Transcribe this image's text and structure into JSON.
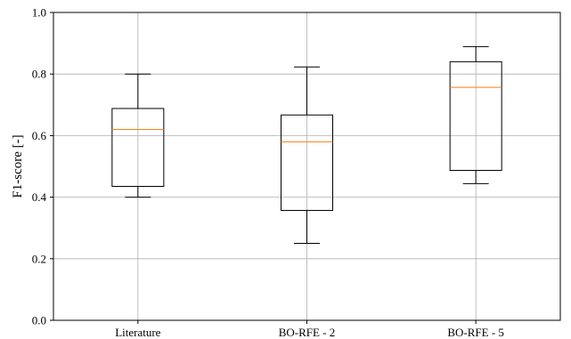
{
  "chart_data": {
    "type": "box",
    "title": "",
    "xlabel": "",
    "ylabel": "F1-score [-]",
    "ylim": [
      0.0,
      1.0
    ],
    "yticks": [
      "0.0",
      "0.2",
      "0.4",
      "0.6",
      "0.8",
      "1.0"
    ],
    "grid": true,
    "categories": [
      "Literature",
      "BO-RFE - 2",
      "BO-RFE - 5"
    ],
    "boxes": [
      {
        "category": "Literature",
        "whisker_low": 0.4,
        "q1": 0.435,
        "median": 0.62,
        "q3": 0.688,
        "whisker_high": 0.8
      },
      {
        "category": "BO-RFE - 2",
        "whisker_low": 0.25,
        "q1": 0.357,
        "median": 0.58,
        "q3": 0.667,
        "whisker_high": 0.823
      },
      {
        "category": "BO-RFE - 5",
        "whisker_low": 0.444,
        "q1": 0.487,
        "median": 0.757,
        "q3": 0.84,
        "whisker_high": 0.889
      }
    ],
    "colors": {
      "box": "#000000",
      "median": "#ff7f0e",
      "grid": "#b0b0b0"
    }
  }
}
